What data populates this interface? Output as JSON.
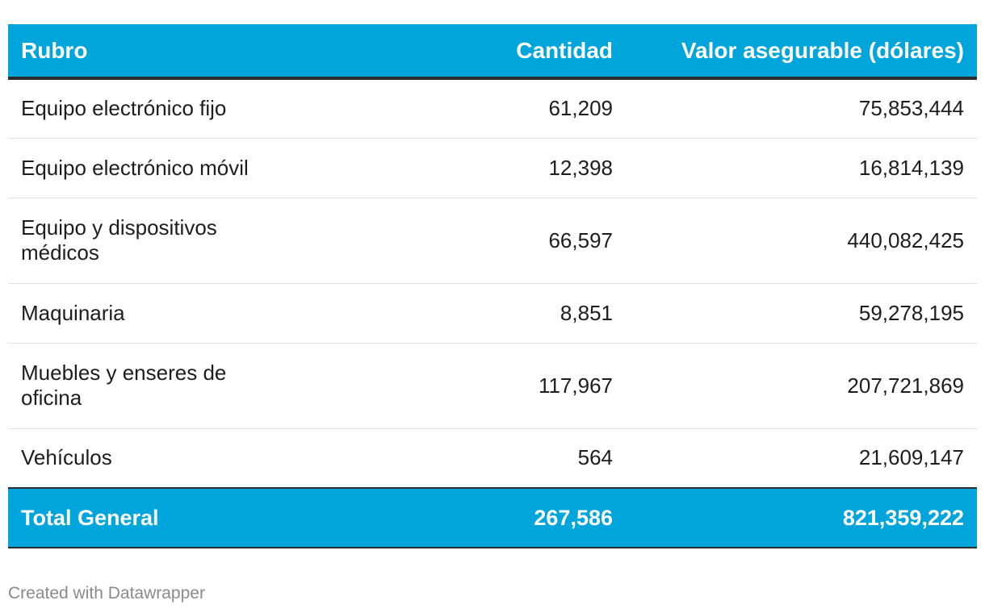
{
  "chart_data": {
    "type": "table",
    "columns": [
      "Rubro",
      "Cantidad",
      "Valor asegurable (dólares)"
    ],
    "rows": [
      {
        "rubro": "Equipo electrónico fijo",
        "cantidad": "61,209",
        "valor": "75,853,444"
      },
      {
        "rubro": "Equipo electrónico móvil",
        "cantidad": "12,398",
        "valor": "16,814,139"
      },
      {
        "rubro": "Equipo y dispositivos médicos",
        "cantidad": "66,597",
        "valor": "440,082,425"
      },
      {
        "rubro": "Maquinaria",
        "cantidad": "8,851",
        "valor": "59,278,195"
      },
      {
        "rubro": "Muebles y enseres de oficina",
        "cantidad": "117,967",
        "valor": "207,721,869"
      },
      {
        "rubro": "Vehículos",
        "cantidad": "564",
        "valor": "21,609,147"
      }
    ],
    "total": {
      "rubro": "Total General",
      "cantidad": "267,586",
      "valor": "821,359,222"
    },
    "header_color": "#00a5dc"
  },
  "footer": {
    "credit": "Created with Datawrapper"
  }
}
